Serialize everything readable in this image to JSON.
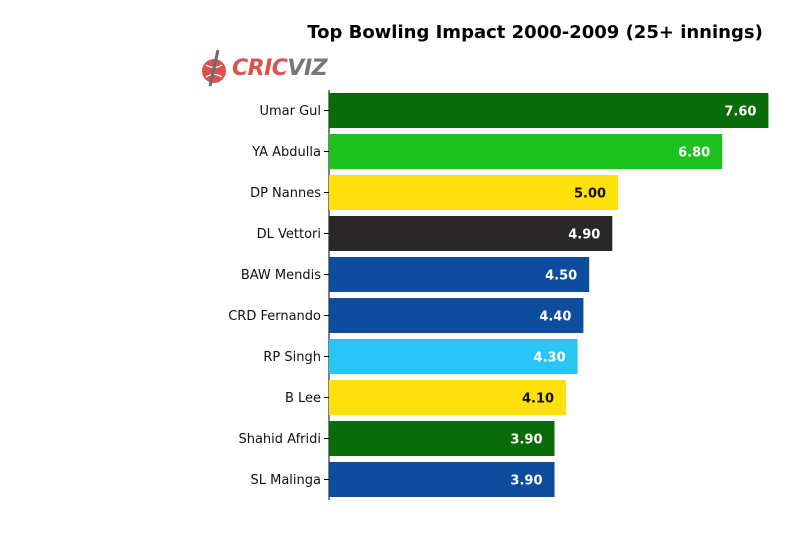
{
  "chart_data": {
    "type": "bar",
    "orientation": "horizontal",
    "title": "Top Bowling Impact 2000-2009 (25+ innings)",
    "categories": [
      "Umar Gul",
      "YA Abdulla",
      "DP Nannes",
      "DL Vettori",
      "BAW Mendis",
      "CRD Fernando",
      "RP Singh",
      "B Lee",
      "Shahid Afridi",
      "SL Malinga"
    ],
    "values": [
      7.6,
      6.8,
      5.0,
      4.9,
      4.5,
      4.4,
      4.3,
      4.1,
      3.9,
      3.9
    ],
    "value_labels": [
      "7.60",
      "6.80",
      "5.00",
      "4.90",
      "4.50",
      "4.40",
      "4.30",
      "4.10",
      "3.90",
      "3.90"
    ],
    "bar_colors": [
      "#0a6b0a",
      "#1ec21e",
      "#ffe00a",
      "#2a2728",
      "#0e4c9e",
      "#0e4c9e",
      "#29c5f6",
      "#ffe00a",
      "#0a6b0a",
      "#0e4c9e"
    ],
    "label_colors": [
      "#ffffff",
      "#ffffff",
      "#111111",
      "#ffffff",
      "#ffffff",
      "#ffffff",
      "#ffffff",
      "#111111",
      "#ffffff",
      "#ffffff"
    ],
    "xlim": [
      0,
      7.8
    ],
    "grid": false,
    "legend": "none",
    "xlabel": "",
    "ylabel": ""
  },
  "logo": {
    "part1": "CRIC",
    "part2": "VIZ"
  }
}
